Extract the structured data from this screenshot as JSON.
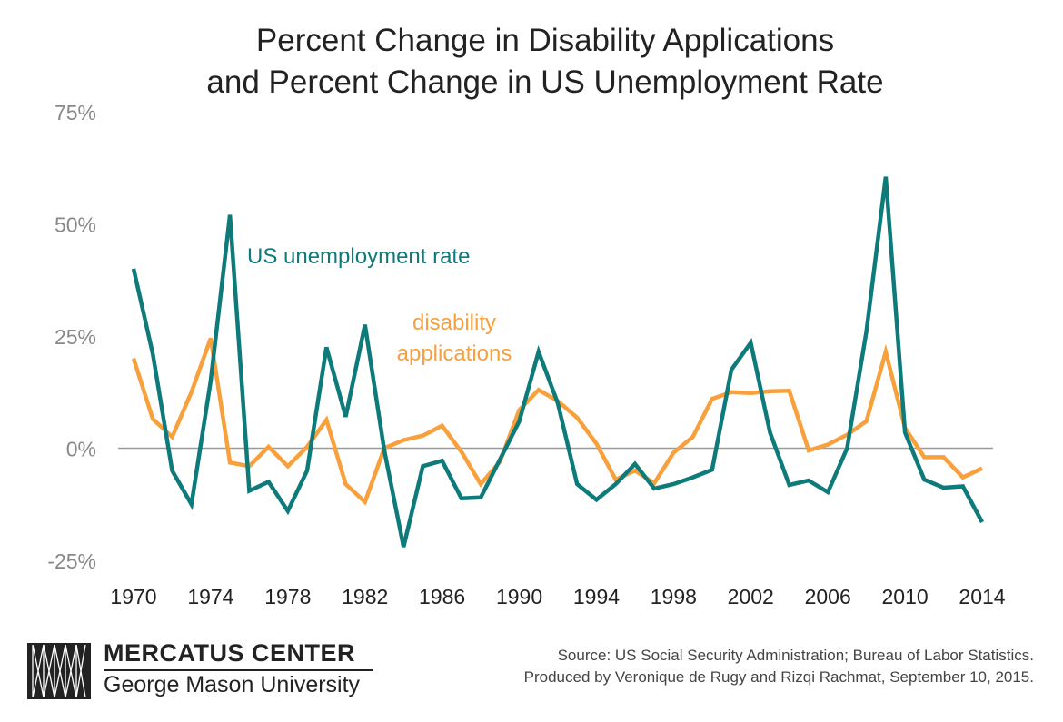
{
  "chart_data": {
    "type": "line",
    "title_line1": "Percent Change in Disability Applications",
    "title_line2": "and Percent Change in US Unemployment Rate",
    "x": [
      1970,
      1971,
      1972,
      1973,
      1974,
      1975,
      1976,
      1977,
      1978,
      1979,
      1980,
      1981,
      1982,
      1983,
      1984,
      1985,
      1986,
      1987,
      1988,
      1989,
      1990,
      1991,
      1992,
      1993,
      1994,
      1995,
      1996,
      1997,
      1998,
      1999,
      2000,
      2001,
      2002,
      2003,
      2004,
      2005,
      2006,
      2007,
      2008,
      2009,
      2010,
      2011,
      2012,
      2013,
      2014
    ],
    "x_ticks": [
      "1970",
      "1974",
      "1978",
      "1982",
      "1986",
      "1990",
      "1994",
      "1998",
      "2002",
      "2006",
      "2010",
      "2014"
    ],
    "x_tick_values": [
      1970,
      1974,
      1978,
      1982,
      1986,
      1990,
      1994,
      1998,
      2002,
      2006,
      2010,
      2014
    ],
    "y_ticks": [
      "75%",
      "50%",
      "25%",
      "0%",
      "-25%"
    ],
    "y_tick_values": [
      75,
      50,
      25,
      0,
      -25
    ],
    "ylim": [
      -25,
      75
    ],
    "xlim": [
      1970,
      2014
    ],
    "grid": false,
    "series": [
      {
        "name": "US unemployment rate",
        "color": "#0f7a7a",
        "values": [
          40,
          21,
          -5,
          -12.5,
          15,
          52,
          -9.5,
          -7.5,
          -14,
          -5,
          22.5,
          7,
          27.5,
          -0.5,
          -22,
          -4,
          -2.8,
          -11.2,
          -11,
          -2.5,
          6,
          21.5,
          10,
          -8,
          -11.5,
          -8,
          -3.5,
          -9,
          -8,
          -6.5,
          -4.8,
          17.5,
          23.5,
          3.5,
          -8.2,
          -7.2,
          -9.8,
          0,
          26,
          60.5,
          3.5,
          -7,
          -8.8,
          -8.5,
          -16.5
        ]
      },
      {
        "name": "disability applications",
        "color": "#f7a03c",
        "values": [
          20,
          6.5,
          2.5,
          12.5,
          24.5,
          -3.2,
          -4,
          0.3,
          -4,
          0.3,
          6.3,
          -8,
          -12,
          0,
          1.8,
          2.8,
          5,
          -0.8,
          -8,
          -3,
          8.5,
          13,
          10.5,
          6.8,
          1,
          -7,
          -5,
          -7.8,
          -1,
          2.5,
          11,
          12.5,
          12.3,
          12.7,
          12.8,
          -0.5,
          0.8,
          3,
          6,
          21.5,
          4.5,
          -2,
          -2,
          -6.5,
          -4.5
        ]
      }
    ],
    "annotations": {
      "unemployment_label": "US unemployment rate",
      "disability_label_line1": "disability",
      "disability_label_line2": "applications"
    }
  },
  "footer": {
    "logo_line1": "MERCATUS CENTER",
    "logo_line2": "George Mason University",
    "source_line1": "Source: US Social Security Administration; Bureau of Labor Statistics.",
    "source_line2": "Produced by Veronique de Rugy and Rizqi Rachmat, September 10, 2015."
  },
  "colors": {
    "axis": "#999999",
    "teal": "#0f7a7a",
    "orange": "#f7a03c"
  }
}
